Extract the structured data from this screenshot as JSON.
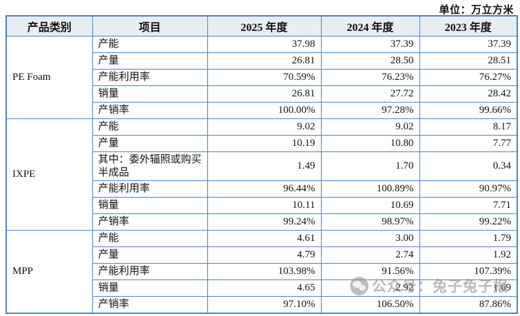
{
  "meta": {
    "unit_label": "单位：万立方米"
  },
  "table": {
    "headers": [
      "产品类别",
      "项目",
      "2025 年度",
      "2024 年度",
      "2023 年度"
    ],
    "sections": [
      {
        "category": "PE Foam",
        "rows": [
          {
            "item": "产能",
            "v2025": "37.98",
            "v2024": "37.39",
            "v2023": "37.39"
          },
          {
            "item": "产量",
            "v2025": "26.81",
            "v2024": "28.50",
            "v2023": "28.51"
          },
          {
            "item": "产能利用率",
            "v2025": "70.59%",
            "v2024": "76.23%",
            "v2023": "76.27%"
          },
          {
            "item": "销量",
            "v2025": "26.81",
            "v2024": "27.72",
            "v2023": "28.42"
          },
          {
            "item": "产销率",
            "v2025": "100.00%",
            "v2024": "97.28%",
            "v2023": "99.66%"
          }
        ]
      },
      {
        "category": "IXPE",
        "rows": [
          {
            "item": "产能",
            "v2025": "9.02",
            "v2024": "9.02",
            "v2023": "8.17"
          },
          {
            "item": "产量",
            "v2025": "10.19",
            "v2024": "10.80",
            "v2023": "7.77"
          },
          {
            "item": "其中：委外辐照或购买半成品",
            "v2025": "1.49",
            "v2024": "1.70",
            "v2023": "0.34",
            "tall": true
          },
          {
            "item": "产能利用率",
            "v2025": "96.44%",
            "v2024": "100.89%",
            "v2023": "90.97%"
          },
          {
            "item": "销量",
            "v2025": "10.11",
            "v2024": "10.69",
            "v2023": "7.71"
          },
          {
            "item": "产销率",
            "v2025": "99.24%",
            "v2024": "98.97%",
            "v2023": "99.22%"
          }
        ]
      },
      {
        "category": "MPP",
        "rows": [
          {
            "item": "产能",
            "v2025": "4.61",
            "v2024": "3.00",
            "v2023": "1.79"
          },
          {
            "item": "产量",
            "v2025": "4.79",
            "v2024": "2.74",
            "v2023": "1.92"
          },
          {
            "item": "产能利用率",
            "v2025": "103.98%",
            "v2024": "91.56%",
            "v2023": "107.39%"
          },
          {
            "item": "销量",
            "v2025": "4.65",
            "v2024": "2.92",
            "v2023": "1.69"
          },
          {
            "item": "产销率",
            "v2025": "97.10%",
            "v2024": "106.50%",
            "v2023": "87.86%"
          }
        ]
      }
    ]
  },
  "watermark": {
    "icon": "wechat-icon",
    "text": "公众号：兔子兔子报"
  }
}
